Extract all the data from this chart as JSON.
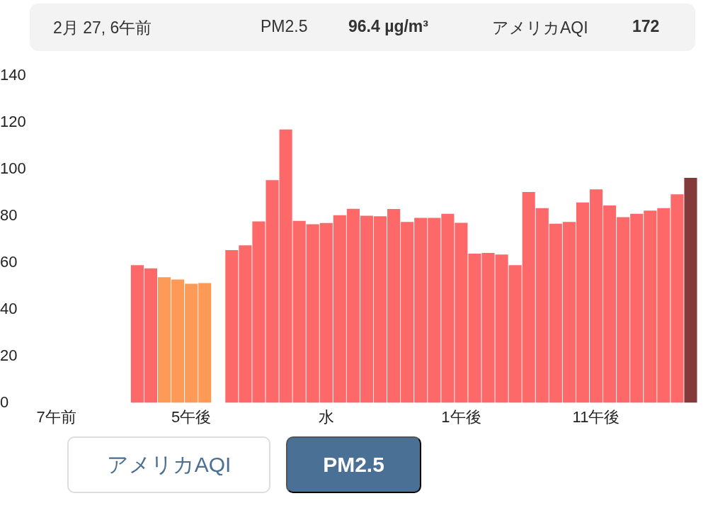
{
  "chart_data": {
    "type": "bar",
    "annotations": [
      "2月 27, 6午前",
      "PM2.5",
      "96.4 µg/m³",
      "アメリカAQI",
      "172",
      "アメリカAQI",
      "PM2.5"
    ],
    "categories": [
      "7午前",
      null,
      null,
      null,
      null,
      null,
      null,
      null,
      null,
      null,
      "5午後",
      null,
      null,
      null,
      null,
      null,
      null,
      null,
      null,
      null,
      "水",
      null,
      null,
      null,
      null,
      null,
      null,
      null,
      null,
      null,
      "1午後",
      null,
      null,
      null,
      null,
      null,
      null,
      null,
      null,
      null,
      "11午後",
      null,
      null,
      null,
      null,
      null,
      null,
      null
    ],
    "values": [
      null,
      null,
      null,
      null,
      null,
      null,
      59.0,
      57.6,
      53.8,
      52.8,
      51.0,
      51.3,
      null,
      65.4,
      67.5,
      77.7,
      95.4,
      117.1,
      77.9,
      76.5,
      77.0,
      80.4,
      83.1,
      80.1,
      79.9,
      83.0,
      77.5,
      79.2,
      79.2,
      81.0,
      77.1,
      63.9,
      64.2,
      63.5,
      59.0,
      90.3,
      83.4,
      76.7,
      77.5,
      85.8,
      91.4,
      84.5,
      79.5,
      81.0,
      82.3,
      83.4,
      89.3,
      96.4
    ],
    "colors": [
      "#fd6868",
      "#fd6868",
      "#fd6868",
      "#fd6868",
      "#fd6868",
      "#fd6868",
      "#fd6868",
      "#fd6868",
      "#fe9a57",
      "#fe9a57",
      "#fe9a57",
      "#fe9a57",
      "#fd6868",
      "#fd6868",
      "#fd6868",
      "#fd6868",
      "#fd6868",
      "#fd6868",
      "#fd6868",
      "#fd6868",
      "#fd6868",
      "#fd6868",
      "#fd6868",
      "#fd6868",
      "#fd6868",
      "#fd6868",
      "#fd6868",
      "#fd6868",
      "#fd6868",
      "#fd6868",
      "#fd6868",
      "#fd6868",
      "#fd6868",
      "#fd6868",
      "#fd6868",
      "#fd6868",
      "#fd6868",
      "#fd6868",
      "#fd6868",
      "#fd6868",
      "#fd6868",
      "#fd6868",
      "#fd6868",
      "#fd6868",
      "#fd6868",
      "#fd6868",
      "#fd6868",
      "#843a3a"
    ],
    "ylim": [
      0,
      140
    ],
    "yticks": [
      0,
      20,
      40,
      60,
      80,
      100,
      120,
      140
    ],
    "grid": false,
    "legend": false
  }
}
